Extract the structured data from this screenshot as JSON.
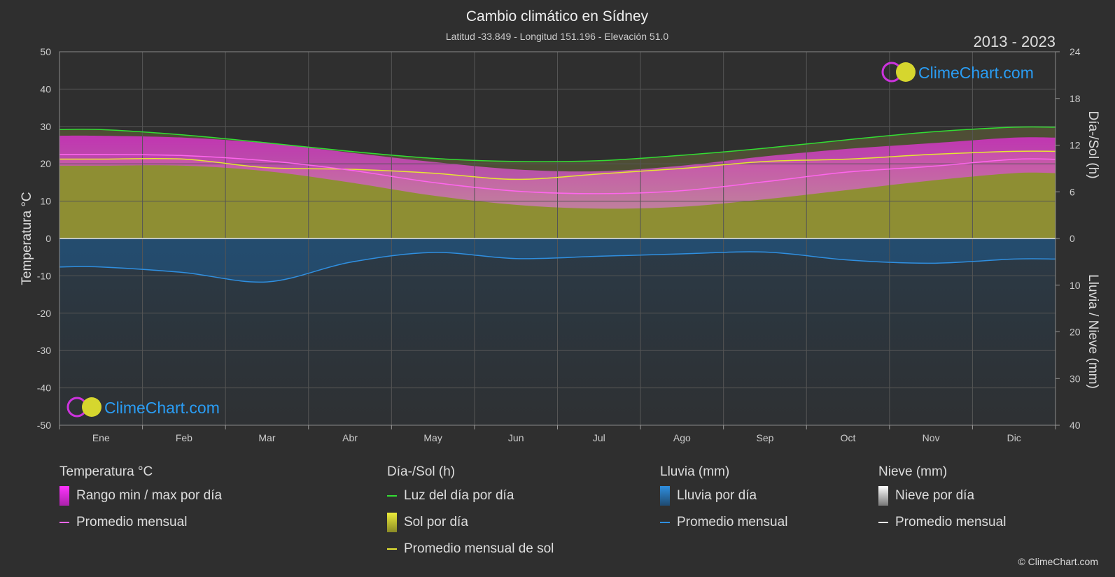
{
  "header": {
    "title": "Cambio climático en Sídney",
    "subtitle": "Latitud -33.849 - Longitud 151.196 - Elevación 51.0",
    "year_range": "2013 - 2023"
  },
  "brand": {
    "logo_text": "ClimeChart.com",
    "copyright": "© ClimeChart.com"
  },
  "chart_data": {
    "type": "area",
    "categories": [
      "Ene",
      "Feb",
      "Mar",
      "Abr",
      "May",
      "Jun",
      "Jul",
      "Ago",
      "Sep",
      "Oct",
      "Nov",
      "Dic"
    ],
    "axes": {
      "left": {
        "label": "Temperatura °C",
        "min": -50,
        "max": 50,
        "ticks": [
          50,
          40,
          30,
          20,
          10,
          0,
          -10,
          -20,
          -30,
          -40,
          -50
        ]
      },
      "right_top": {
        "label": "Día-/Sol (h)",
        "min": 0,
        "max": 24,
        "ticks": [
          24,
          18,
          12,
          6,
          0
        ]
      },
      "right_bottom": {
        "label": "Lluvia / Nieve (mm)",
        "min": 0,
        "max": 40,
        "ticks": [
          0,
          10,
          20,
          30,
          40
        ]
      }
    },
    "grid": true,
    "series": [
      {
        "name": "Luz del día por día",
        "unit": "h",
        "color": "#33dd33",
        "values": [
          14.0,
          13.3,
          12.3,
          11.2,
          10.3,
          9.9,
          10.0,
          10.7,
          11.6,
          12.7,
          13.7,
          14.3
        ]
      },
      {
        "name": "Promedio mensual de sol",
        "unit": "h",
        "color": "#e6e633",
        "values": [
          10.2,
          10.2,
          9.1,
          8.9,
          8.4,
          7.6,
          8.3,
          9.0,
          9.9,
          10.2,
          10.8,
          11.2
        ]
      },
      {
        "name": "Temperatura promedio mensual",
        "unit": "°C",
        "color": "#ff66ee",
        "values": [
          22.5,
          22.2,
          20.8,
          18.3,
          15.0,
          12.7,
          12.0,
          12.8,
          15.2,
          17.8,
          19.3,
          21.2
        ]
      },
      {
        "name": "Temperatura máxima",
        "unit": "°C",
        "color": "#cc44aa",
        "values": [
          27.5,
          27.0,
          25.5,
          23.0,
          20.5,
          18.5,
          18.0,
          19.5,
          22.0,
          24.0,
          25.5,
          27.0
        ]
      },
      {
        "name": "Temperatura mínima",
        "unit": "°C",
        "color": "#cc44aa",
        "values": [
          19.5,
          19.5,
          18.0,
          15.0,
          11.5,
          9.0,
          8.0,
          8.5,
          10.5,
          13.0,
          15.5,
          17.5
        ]
      },
      {
        "name": "Lluvia promedio mensual",
        "unit": "mm",
        "color": "#2f8fe0",
        "values": [
          6.1,
          7.3,
          9.3,
          5.1,
          3.0,
          4.3,
          3.8,
          3.3,
          2.9,
          4.6,
          5.3,
          4.4
        ]
      }
    ]
  },
  "legend": {
    "groups": [
      {
        "title": "Temperatura °C",
        "items": [
          {
            "label": "Rango min / max por día",
            "kind": "box",
            "color": "#dd22dd"
          },
          {
            "label": "Promedio mensual",
            "kind": "line",
            "color": "#ff66ee"
          }
        ]
      },
      {
        "title": "Día-/Sol (h)",
        "items": [
          {
            "label": "Luz del día por día",
            "kind": "line",
            "color": "#33dd33"
          },
          {
            "label": "Sol por día",
            "kind": "box",
            "color": "#d6d62e"
          },
          {
            "label": "Promedio mensual de sol",
            "kind": "line",
            "color": "#e6e633"
          }
        ]
      },
      {
        "title": "Lluvia (mm)",
        "items": [
          {
            "label": "Lluvia por día",
            "kind": "box",
            "color": "#2b7fd0"
          },
          {
            "label": "Promedio mensual",
            "kind": "line",
            "color": "#2f8fe0"
          }
        ]
      },
      {
        "title": "Nieve (mm)",
        "items": [
          {
            "label": "Nieve por día",
            "kind": "box",
            "color": "#dddddd"
          },
          {
            "label": "Promedio mensual",
            "kind": "line",
            "color": "#eeeeee"
          }
        ]
      }
    ]
  }
}
